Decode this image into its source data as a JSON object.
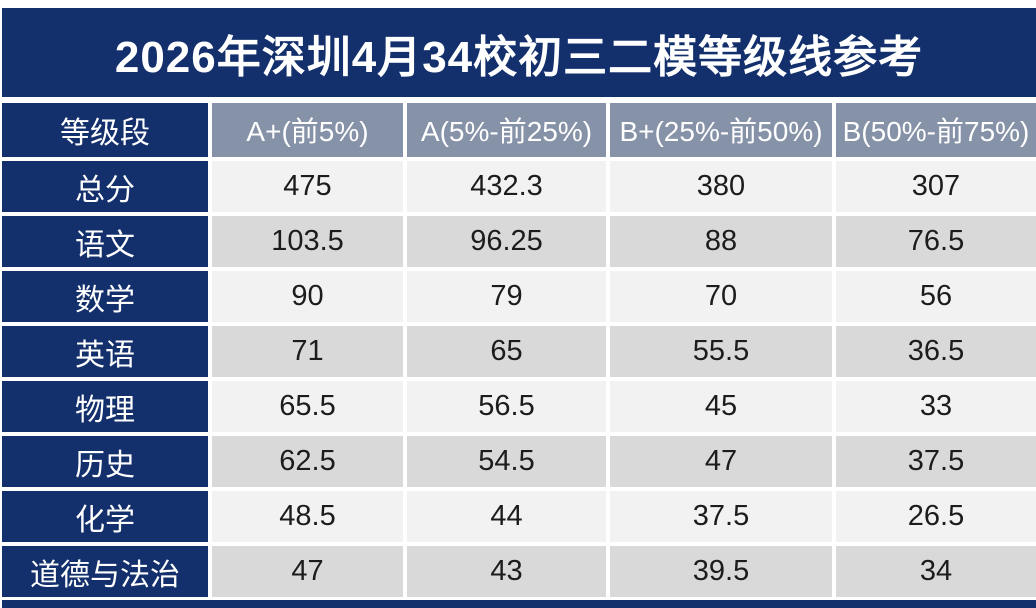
{
  "colors": {
    "navy": "#13306d",
    "header_gray": "#8592a7",
    "row_light": "#f2f2f2",
    "row_dark": "#d9d9d9",
    "text_on_light": "#1c1c1c",
    "text_on_dark": "#ffffff"
  },
  "chart_data": {
    "type": "table",
    "title": "2026年深圳4月34校初三二模等级线参考",
    "corner_header": "等级段",
    "columns": [
      "A+(前5%)",
      "A(5%-前25%)",
      "B+(25%-前50%)",
      "B(50%-前75%)"
    ],
    "rows": [
      {
        "label": "总分",
        "values": [
          "475",
          "432.3",
          "380",
          "307"
        ]
      },
      {
        "label": "语文",
        "values": [
          "103.5",
          "96.25",
          "88",
          "76.5"
        ]
      },
      {
        "label": "数学",
        "values": [
          "90",
          "79",
          "70",
          "56"
        ]
      },
      {
        "label": "英语",
        "values": [
          "71",
          "65",
          "55.5",
          "36.5"
        ]
      },
      {
        "label": "物理",
        "values": [
          "65.5",
          "56.5",
          "45",
          "33"
        ]
      },
      {
        "label": "历史",
        "values": [
          "62.5",
          "54.5",
          "47",
          "37.5"
        ]
      },
      {
        "label": "化学",
        "values": [
          "48.5",
          "44",
          "37.5",
          "26.5"
        ]
      },
      {
        "label": "道德与法治",
        "values": [
          "47",
          "43",
          "39.5",
          "34"
        ]
      }
    ]
  }
}
